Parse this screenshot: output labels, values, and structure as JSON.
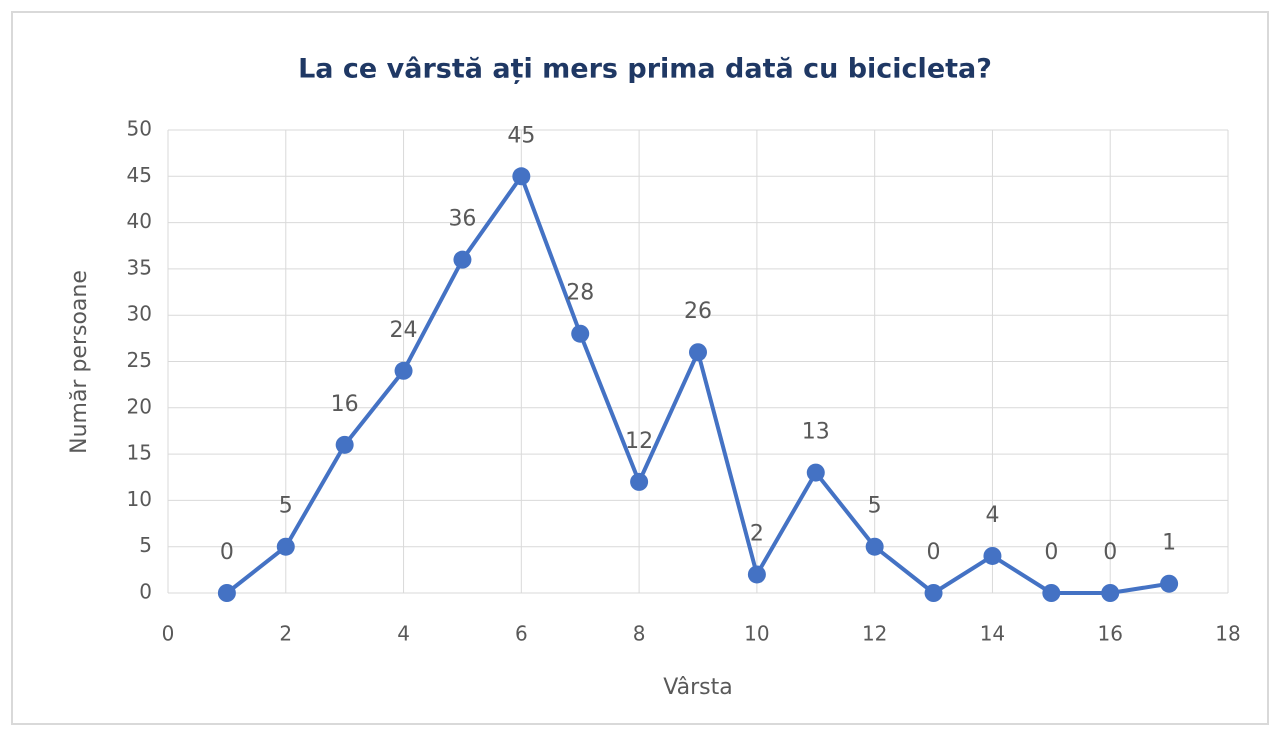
{
  "chart_data": {
    "type": "line",
    "title": "La ce vârstă ați mers prima dată cu bicicleta?",
    "x_label": "Vârsta",
    "y_label": "Număr persoane",
    "x": [
      1,
      2,
      3,
      4,
      5,
      6,
      7,
      8,
      9,
      10,
      11,
      12,
      13,
      14,
      15,
      16,
      17
    ],
    "series": [
      {
        "name": "Număr persoane",
        "color": "#4472c4",
        "values": [
          0,
          5,
          16,
          24,
          36,
          45,
          28,
          12,
          26,
          2,
          13,
          5,
          0,
          4,
          0,
          0,
          1
        ]
      }
    ],
    "xlim": [
      0,
      18
    ],
    "xticks": [
      0,
      2,
      4,
      6,
      8,
      10,
      12,
      14,
      16,
      18
    ],
    "ylim": [
      0,
      50
    ],
    "yticks": [
      0,
      5,
      10,
      15,
      20,
      25,
      30,
      35,
      40,
      45,
      50
    ],
    "grid": true,
    "data_labels": true
  }
}
